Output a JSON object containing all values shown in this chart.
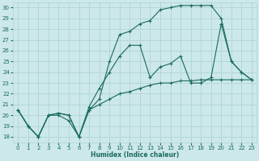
{
  "xlabel": "Humidex (Indice chaleur)",
  "ylabel": "",
  "bg_color": "#cce8e8",
  "grid_color": "#b0d4d4",
  "line_color": "#1a6b5a",
  "ylim": [
    17.5,
    30.5
  ],
  "xlim": [
    -0.5,
    23.5
  ],
  "yticks": [
    18,
    19,
    20,
    21,
    22,
    23,
    24,
    25,
    26,
    27,
    28,
    29,
    30
  ],
  "xticks": [
    0,
    1,
    2,
    3,
    4,
    5,
    6,
    7,
    8,
    9,
    10,
    11,
    12,
    13,
    14,
    15,
    16,
    17,
    18,
    19,
    20,
    21,
    22,
    23
  ],
  "line1_x": [
    0,
    1,
    2,
    3,
    4,
    5,
    6,
    7,
    8,
    9,
    10,
    11,
    12,
    13,
    14,
    15,
    16,
    17,
    18,
    19,
    20,
    21,
    22,
    23
  ],
  "line1_y": [
    20.5,
    19.0,
    18.0,
    20.0,
    20.2,
    20.0,
    18.0,
    20.5,
    21.0,
    21.5,
    22.0,
    22.2,
    22.5,
    22.8,
    23.0,
    23.0,
    23.2,
    23.2,
    23.3,
    23.3,
    23.3,
    23.3,
    23.3,
    23.3
  ],
  "line2_x": [
    0,
    1,
    2,
    3,
    4,
    5,
    6,
    7,
    8,
    9,
    10,
    11,
    12,
    13,
    14,
    15,
    16,
    17,
    18,
    19,
    20,
    21,
    22,
    23
  ],
  "line2_y": [
    20.5,
    19.0,
    18.0,
    20.0,
    20.2,
    20.0,
    18.0,
    20.5,
    21.5,
    25.0,
    27.5,
    27.8,
    28.5,
    28.8,
    29.8,
    30.0,
    30.2,
    30.2,
    30.2,
    30.2,
    29.0,
    25.0,
    24.0,
    23.3
  ],
  "line3_x": [
    0,
    1,
    2,
    3,
    4,
    5,
    6,
    7,
    8,
    9,
    10,
    11,
    12,
    13,
    14,
    15,
    16,
    17,
    18,
    19,
    20,
    21,
    22,
    23
  ],
  "line3_y": [
    20.5,
    19.0,
    18.0,
    20.0,
    20.0,
    19.5,
    18.0,
    20.8,
    22.5,
    24.0,
    25.5,
    26.5,
    26.5,
    23.5,
    24.5,
    24.8,
    25.5,
    23.0,
    23.0,
    23.5,
    28.5,
    25.0,
    24.0,
    23.3
  ]
}
